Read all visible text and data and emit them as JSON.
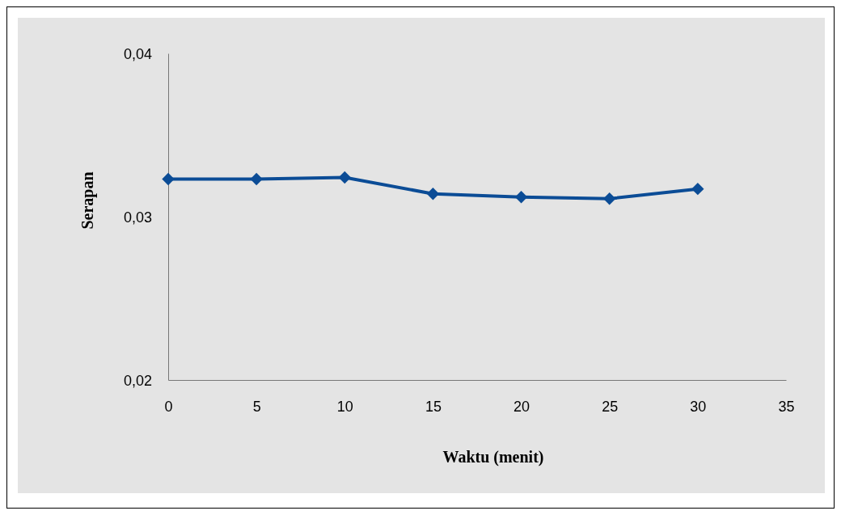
{
  "chart_data": {
    "type": "line",
    "xlabel": "Waktu (menit)",
    "ylabel": "Serapan",
    "x": [
      0,
      5,
      10,
      15,
      20,
      25,
      30
    ],
    "series": [
      {
        "color": "#0b4c96",
        "values": [
          0.0323,
          0.0323,
          0.0324,
          0.0314,
          0.0312,
          0.0311,
          0.0317
        ]
      }
    ],
    "xlim": [
      0,
      35
    ],
    "xticks": [
      0,
      5,
      10,
      15,
      20,
      25,
      30,
      35
    ],
    "ylim": [
      0.02,
      0.04
    ],
    "yticks": [
      {
        "value": 0.02,
        "label": "0,02"
      },
      {
        "value": 0.03,
        "label": "0,03"
      },
      {
        "value": 0.04,
        "label": "0,04"
      }
    ],
    "marker": "diamond",
    "line_style": "solid",
    "grid": false
  }
}
